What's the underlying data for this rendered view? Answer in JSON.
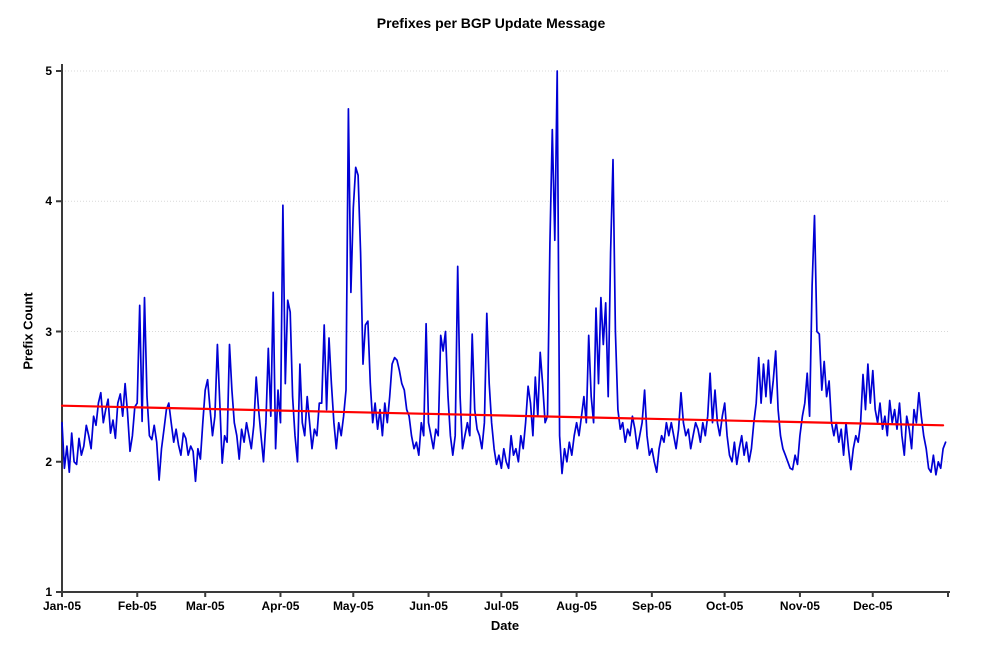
{
  "chart_data": {
    "type": "line",
    "title": "Prefixes per BGP Update Message",
    "xlabel": "Date",
    "ylabel": "Prefix Count",
    "x_tick_labels": [
      "Jan-05",
      "Feb-05",
      "Mar-05",
      "Apr-05",
      "May-05",
      "Jun-05",
      "Jul-05",
      "Aug-05",
      "Sep-05",
      "Oct-05",
      "Nov-05",
      "Dec-05"
    ],
    "month_start_days": [
      0,
      31,
      59,
      90,
      120,
      151,
      181,
      212,
      243,
      273,
      304,
      334
    ],
    "x_range_days": [
      0,
      365
    ],
    "ylim": [
      1,
      5
    ],
    "y_ticks": [
      1,
      2,
      3,
      4,
      5
    ],
    "grid": "horizontal-dotted",
    "legend": "none",
    "series": [
      {
        "name": "daily-prefix-count",
        "color": "#0000D5",
        "x_unit": "day-of-2005",
        "values": [
          2.3,
          1.95,
          2.12,
          1.92,
          2.22,
          2.0,
          1.98,
          2.18,
          2.05,
          2.12,
          2.28,
          2.2,
          2.1,
          2.35,
          2.28,
          2.45,
          2.53,
          2.3,
          2.4,
          2.48,
          2.22,
          2.32,
          2.18,
          2.45,
          2.52,
          2.35,
          2.6,
          2.38,
          2.08,
          2.2,
          2.42,
          2.45,
          3.2,
          2.31,
          3.26,
          2.5,
          2.2,
          2.17,
          2.28,
          2.15,
          1.86,
          2.1,
          2.25,
          2.4,
          2.45,
          2.3,
          2.15,
          2.25,
          2.13,
          2.05,
          2.22,
          2.18,
          2.05,
          2.12,
          2.08,
          1.85,
          2.1,
          2.02,
          2.3,
          2.55,
          2.63,
          2.4,
          2.2,
          2.35,
          2.9,
          2.45,
          1.99,
          2.2,
          2.15,
          2.9,
          2.55,
          2.3,
          2.2,
          2.02,
          2.25,
          2.15,
          2.3,
          2.2,
          2.1,
          2.28,
          2.65,
          2.4,
          2.2,
          2.0,
          2.3,
          2.87,
          2.35,
          3.3,
          2.1,
          2.55,
          2.3,
          3.97,
          2.6,
          3.24,
          3.15,
          2.5,
          2.2,
          2.0,
          2.75,
          2.3,
          2.2,
          2.5,
          2.3,
          2.1,
          2.25,
          2.2,
          2.45,
          2.45,
          3.05,
          2.4,
          2.95,
          2.6,
          2.3,
          2.1,
          2.3,
          2.2,
          2.35,
          2.55,
          4.71,
          3.3,
          3.95,
          4.26,
          4.2,
          3.6,
          2.75,
          3.05,
          3.08,
          2.6,
          2.3,
          2.45,
          2.25,
          2.4,
          2.2,
          2.45,
          2.3,
          2.5,
          2.75,
          2.8,
          2.78,
          2.7,
          2.6,
          2.55,
          2.4,
          2.35,
          2.2,
          2.1,
          2.15,
          2.05,
          2.3,
          2.2,
          3.06,
          2.3,
          2.2,
          2.1,
          2.25,
          2.2,
          2.97,
          2.85,
          3.0,
          2.5,
          2.2,
          2.05,
          2.2,
          3.5,
          2.5,
          2.1,
          2.2,
          2.3,
          2.2,
          2.98,
          2.4,
          2.25,
          2.2,
          2.1,
          2.3,
          3.14,
          2.6,
          2.3,
          2.1,
          1.98,
          2.05,
          1.95,
          2.1,
          2.0,
          1.95,
          2.2,
          2.05,
          2.1,
          2.0,
          2.2,
          2.1,
          2.3,
          2.58,
          2.45,
          2.2,
          2.65,
          2.35,
          2.84,
          2.6,
          2.3,
          2.35,
          3.67,
          4.55,
          3.7,
          5.0,
          2.2,
          1.91,
          2.1,
          2.0,
          2.15,
          2.05,
          2.2,
          2.3,
          2.2,
          2.35,
          2.5,
          2.3,
          2.97,
          2.5,
          2.3,
          3.18,
          2.6,
          3.26,
          2.9,
          3.22,
          2.5,
          3.61,
          4.32,
          3.0,
          2.4,
          2.25,
          2.3,
          2.15,
          2.25,
          2.2,
          2.35,
          2.25,
          2.1,
          2.2,
          2.3,
          2.55,
          2.2,
          2.05,
          2.1,
          2.0,
          1.92,
          2.1,
          2.2,
          2.15,
          2.3,
          2.2,
          2.3,
          2.2,
          2.1,
          2.25,
          2.53,
          2.3,
          2.2,
          2.25,
          2.1,
          2.2,
          2.3,
          2.25,
          2.15,
          2.3,
          2.2,
          2.35,
          2.68,
          2.3,
          2.55,
          2.3,
          2.2,
          2.35,
          2.45,
          2.2,
          2.05,
          2.0,
          2.15,
          1.98,
          2.1,
          2.2,
          2.05,
          2.15,
          2.0,
          2.1,
          2.3,
          2.45,
          2.8,
          2.45,
          2.75,
          2.5,
          2.78,
          2.45,
          2.62,
          2.85,
          2.4,
          2.2,
          2.1,
          2.05,
          2.0,
          1.95,
          1.94,
          2.05,
          1.98,
          2.2,
          2.35,
          2.45,
          2.68,
          2.35,
          3.35,
          3.89,
          3.0,
          2.98,
          2.55,
          2.77,
          2.5,
          2.62,
          2.3,
          2.2,
          2.3,
          2.15,
          2.25,
          2.05,
          2.3,
          2.1,
          1.94,
          2.1,
          2.2,
          2.15,
          2.3,
          2.67,
          2.4,
          2.75,
          2.45,
          2.7,
          2.4,
          2.3,
          2.45,
          2.25,
          2.35,
          2.2,
          2.47,
          2.3,
          2.4,
          2.25,
          2.45,
          2.2,
          2.05,
          2.35,
          2.25,
          2.1,
          2.4,
          2.3,
          2.53,
          2.35,
          2.2,
          2.1,
          1.95,
          1.92,
          2.05,
          1.9,
          2.0,
          1.95,
          2.1,
          2.15
        ]
      },
      {
        "name": "linear-trend",
        "color": "#FF0000",
        "points": [
          [
            0,
            2.43
          ],
          [
            363,
            2.28
          ]
        ]
      }
    ],
    "colors": {
      "background": "#FFFFFF",
      "axis": "#3A3A3A",
      "gridline": "#D9D9D9",
      "text": "#000000"
    }
  }
}
